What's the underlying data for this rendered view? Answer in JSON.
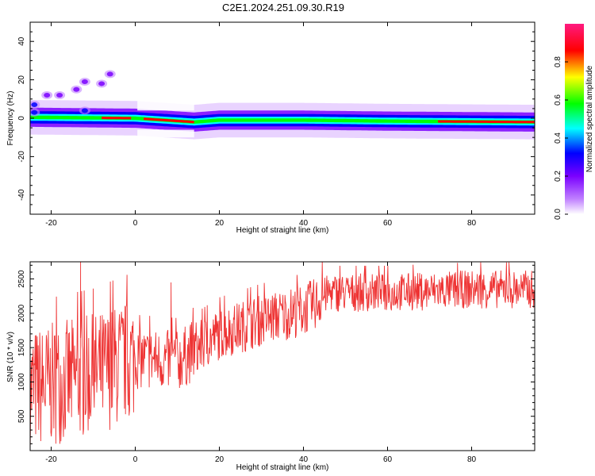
{
  "title": "C2E1.2024.251.09.30.R19",
  "chart_data": [
    {
      "type": "heatmap",
      "xlabel": "Height of straight line (km)",
      "ylabel": "Frequency (Hz)",
      "xlim": [
        -25,
        95
      ],
      "ylim": [
        -50,
        50
      ],
      "xticks": [
        -20,
        0,
        20,
        40,
        60,
        80
      ],
      "yticks": [
        -40,
        -20,
        0,
        20,
        40
      ],
      "colorbar": {
        "label": "Normalized spectral amplitude",
        "range": [
          0,
          1
        ],
        "ticks": [
          "0.0",
          "0.2",
          "0.4",
          "0.6",
          "0.8"
        ],
        "colors": [
          "#ffffff",
          "#c080ff",
          "#7a00ff",
          "#0000ff",
          "#00ffff",
          "#00ff00",
          "#ffff00",
          "#ff0000",
          "#ff1a80"
        ]
      },
      "ridge": [
        {
          "x": -25,
          "y": 0.5
        },
        {
          "x": 0,
          "y": 0
        },
        {
          "x": 14,
          "y": -2
        },
        {
          "x": 20,
          "y": -1
        },
        {
          "x": 40,
          "y": -1
        },
        {
          "x": 60,
          "y": -1.5
        },
        {
          "x": 95,
          "y": -2
        }
      ],
      "features": [
        {
          "x": -24,
          "y": 7,
          "amp": 0.25
        },
        {
          "x": -21,
          "y": 12,
          "amp": 0.12
        },
        {
          "x": -18,
          "y": 12,
          "amp": 0.1
        },
        {
          "x": -14,
          "y": 15,
          "amp": 0.1
        },
        {
          "x": -12,
          "y": 19,
          "amp": 0.08
        },
        {
          "x": -8,
          "y": 18,
          "amp": 0.08
        },
        {
          "x": -6,
          "y": 23,
          "amp": 0.12
        },
        {
          "x": -12,
          "y": 4,
          "amp": 0.3
        },
        {
          "x": -24,
          "y": 3,
          "amp": 0.3
        }
      ]
    },
    {
      "type": "line",
      "xlabel": "Height of straight line (km)",
      "ylabel": "SNR (10 * v/v)",
      "xlim": [
        -25,
        95
      ],
      "ylim": [
        0,
        2750
      ],
      "xticks": [
        -20,
        0,
        20,
        40,
        60,
        80
      ],
      "yticks": [
        500,
        1000,
        1500,
        2000,
        2500
      ],
      "series": [
        {
          "color": "#ee3333",
          "trend": [
            {
              "x": -25,
              "y": 900
            },
            {
              "x": -10,
              "y": 1100
            },
            {
              "x": 0,
              "y": 1350
            },
            {
              "x": 10,
              "y": 1300
            },
            {
              "x": 15,
              "y": 1500
            },
            {
              "x": 20,
              "y": 1700
            },
            {
              "x": 30,
              "y": 1900
            },
            {
              "x": 40,
              "y": 2050
            },
            {
              "x": 43,
              "y": 2150
            },
            {
              "x": 46,
              "y": 2300
            },
            {
              "x": 60,
              "y": 2300
            },
            {
              "x": 80,
              "y": 2350
            },
            {
              "x": 95,
              "y": 2350
            }
          ],
          "spikes": [
            {
              "x": -13,
              "y": 2750
            },
            {
              "x": 8.5,
              "y": 2450
            },
            {
              "x": -10,
              "y": 2050
            }
          ]
        }
      ]
    }
  ]
}
